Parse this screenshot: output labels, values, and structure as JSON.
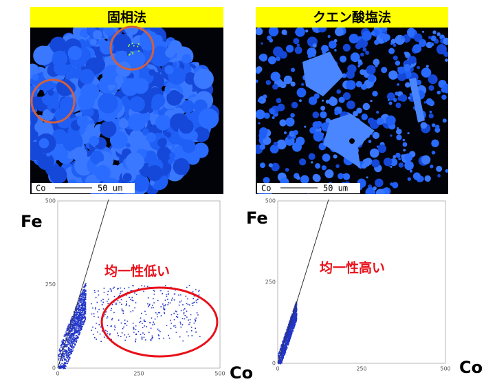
{
  "panels": [
    {
      "title": "固相法",
      "scale_label": "Co",
      "scale_value": "50 um",
      "y_label": "Fe",
      "x_label": "Co",
      "yticks": [
        "500",
        "250",
        "0"
      ],
      "xticks": [
        "0",
        "250",
        "500"
      ],
      "annotation": "均一性低い"
    },
    {
      "title": "クエン酸塩法",
      "scale_label": "Co",
      "scale_value": "50 um",
      "y_label": "Fe",
      "x_label": "Co",
      "yticks": [
        "500",
        "250",
        "0"
      ],
      "xticks": [
        "0",
        "250",
        "500"
      ],
      "annotation": "均一性高い"
    }
  ]
}
